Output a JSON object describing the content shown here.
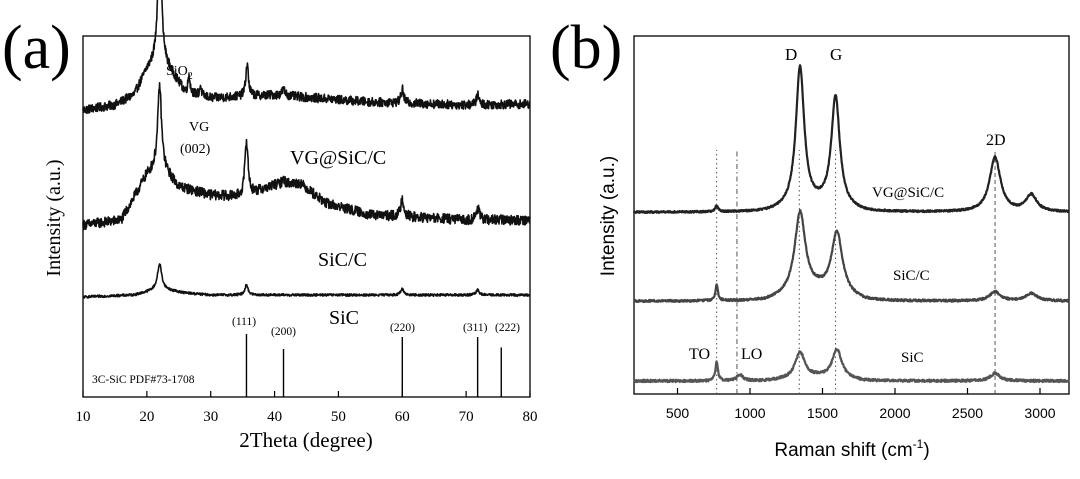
{
  "chart_data": [
    {
      "type": "line",
      "panel_label": "(a)",
      "xlabel": "2Theta (degree)",
      "ylabel": "Intensity (a.u.)",
      "xlim": [
        10,
        80
      ],
      "x_ticks": [
        10,
        20,
        30,
        40,
        50,
        60,
        70,
        80
      ],
      "series": [
        {
          "name": "VG@SiC/C",
          "offset": 2.35,
          "noise": 0.045,
          "color": "#111111",
          "baseline": [
            [
              10,
              0
            ],
            [
              15,
              0.05
            ],
            [
              18,
              0.15
            ],
            [
              20,
              0.4
            ],
            [
              22,
              0.55
            ],
            [
              26,
              0.18
            ],
            [
              30,
              0.12
            ],
            [
              40,
              0.15
            ],
            [
              55,
              0.08
            ],
            [
              70,
              0.05
            ],
            [
              80,
              0.06
            ]
          ],
          "peaks": [
            [
              22.0,
              1.55,
              0.28
            ],
            [
              26.6,
              0.18,
              0.18
            ],
            [
              28.4,
              0.1,
              0.15
            ],
            [
              35.7,
              0.32,
              0.25
            ],
            [
              41.4,
              0.06,
              0.3
            ],
            [
              60.0,
              0.14,
              0.25
            ],
            [
              71.8,
              0.1,
              0.25
            ]
          ]
        },
        {
          "name": "SiC/C",
          "offset": 1.2,
          "noise": 0.05,
          "color": "#111111",
          "baseline": [
            [
              10,
              0
            ],
            [
              16,
              0.05
            ],
            [
              20,
              0.5
            ],
            [
              22,
              0.6
            ],
            [
              25,
              0.38
            ],
            [
              30,
              0.3
            ],
            [
              35,
              0.28
            ],
            [
              40,
              0.4
            ],
            [
              44,
              0.42
            ],
            [
              48,
              0.22
            ],
            [
              55,
              0.1
            ],
            [
              70,
              0.05
            ],
            [
              80,
              0.05
            ]
          ],
          "peaks": [
            [
              22.0,
              0.8,
              0.35
            ],
            [
              35.6,
              0.55,
              0.3
            ],
            [
              41.4,
              0.05,
              0.3
            ],
            [
              60.0,
              0.18,
              0.3
            ],
            [
              71.8,
              0.12,
              0.3
            ]
          ]
        },
        {
          "name": "SiC",
          "offset": 0.48,
          "noise": 0.012,
          "color": "#111111",
          "baseline": [
            [
              10,
              0
            ],
            [
              18,
              0.02
            ],
            [
              22,
              0.08
            ],
            [
              26,
              0.04
            ],
            [
              30,
              0.02
            ],
            [
              80,
              0.02
            ]
          ],
          "peaks": [
            [
              22.0,
              0.25,
              0.4
            ],
            [
              35.6,
              0.1,
              0.3
            ],
            [
              60.0,
              0.06,
              0.3
            ],
            [
              71.8,
              0.05,
              0.3
            ]
          ]
        }
      ],
      "reference": {
        "label": "3C-SiC PDF#73-1708",
        "lines": [
          {
            "x": 35.6,
            "label": "(111)",
            "height": 0.42
          },
          {
            "x": 41.4,
            "label": "(200)",
            "height": 0.32
          },
          {
            "x": 60.0,
            "label": "(220)",
            "height": 0.4
          },
          {
            "x": 71.8,
            "label": "(311)",
            "height": 0.4
          },
          {
            "x": 75.5,
            "label": "(222)",
            "height": 0.33
          }
        ]
      },
      "annotations": {
        "sio2": "SiO",
        "sio2_sub": "2",
        "vg": "VG",
        "vg_plane": "(002)"
      }
    },
    {
      "type": "line",
      "panel_label": "(b)",
      "xlabel": "Raman shift (cm",
      "xlabel_sup": "-1",
      "xlabel_end": ")",
      "ylabel": "Intensity (a.u.)",
      "xlim": [
        200,
        3200
      ],
      "x_ticks": [
        500,
        1000,
        1500,
        2000,
        2500,
        3000
      ],
      "series": [
        {
          "name": "VG@SiC/C",
          "offset": 2.22,
          "noise": 0.012,
          "color": "#222222",
          "baseline": [
            [
              200,
              0
            ],
            [
              1100,
              0
            ],
            [
              1500,
              0.08
            ],
            [
              1800,
              0
            ],
            [
              2400,
              0
            ],
            [
              3200,
              0
            ]
          ],
          "peaks": [
            [
              770,
              0.08,
              12
            ],
            [
              1345,
              1.85,
              35
            ],
            [
              1590,
              1.45,
              35
            ],
            [
              2690,
              0.72,
              45
            ],
            [
              2940,
              0.22,
              45
            ]
          ]
        },
        {
          "name": "SiC/C",
          "offset": 1.05,
          "noise": 0.014,
          "color": "#444444",
          "baseline": [
            [
              200,
              0
            ],
            [
              1100,
              0
            ],
            [
              1470,
              0.12
            ],
            [
              1800,
              0
            ],
            [
              3200,
              0
            ]
          ],
          "peaks": [
            [
              770,
              0.22,
              10
            ],
            [
              1345,
              1.08,
              45
            ],
            [
              1600,
              0.82,
              45
            ],
            [
              2690,
              0.12,
              45
            ],
            [
              2940,
              0.1,
              50
            ]
          ]
        },
        {
          "name": "SiC",
          "offset": 0.0,
          "noise": 0.016,
          "color": "#555555",
          "baseline": [
            [
              200,
              0
            ],
            [
              1100,
              0
            ],
            [
              1470,
              0.05
            ],
            [
              1800,
              0
            ],
            [
              3200,
              0
            ]
          ],
          "peaks": [
            [
              770,
              0.26,
              10
            ],
            [
              930,
              0.08,
              25
            ],
            [
              1345,
              0.34,
              40
            ],
            [
              1600,
              0.38,
              40
            ],
            [
              2690,
              0.1,
              40
            ]
          ]
        }
      ],
      "guide_lines": [
        {
          "x": 770,
          "style": "dotted"
        },
        {
          "x": 910,
          "style": "dashdot"
        },
        {
          "x": 1340,
          "style": "dotted"
        },
        {
          "x": 1590,
          "style": "dotted"
        },
        {
          "x": 2690,
          "style": "dashed"
        }
      ],
      "annotations": {
        "D": "D",
        "G": "G",
        "2D": "2D",
        "TO": "TO",
        "LO": "LO"
      }
    }
  ]
}
